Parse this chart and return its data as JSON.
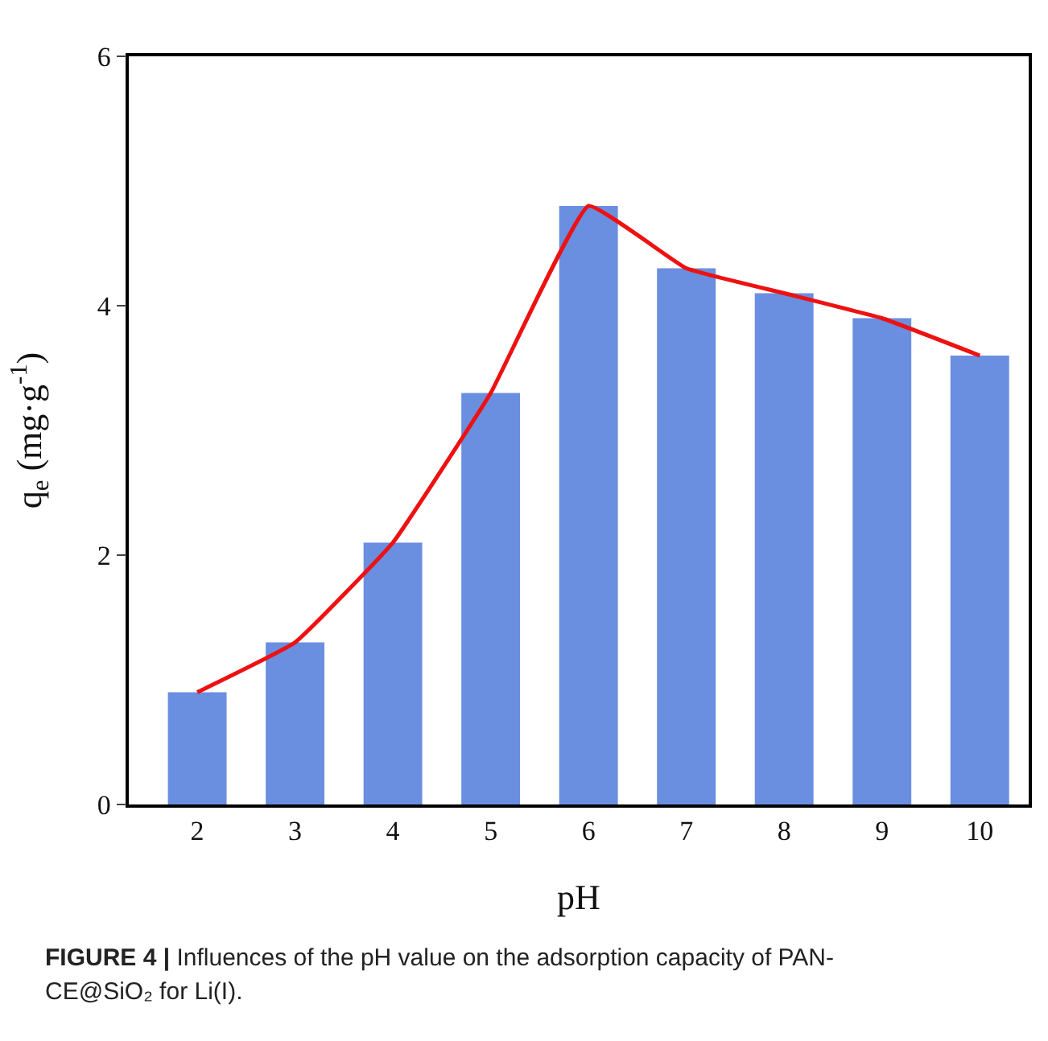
{
  "chart_data": {
    "type": "bar",
    "xlabel": "pH",
    "ylabel": "q$_{e}$ (mg·g$^{-1}$)",
    "categories": [
      "2",
      "3",
      "4",
      "5",
      "6",
      "7",
      "8",
      "9",
      "10"
    ],
    "series": [
      {
        "color": "#6a8ee0",
        "values": [
          0.9,
          1.3,
          2.1,
          3.3,
          4.8,
          4.3,
          4.1,
          3.9,
          3.6
        ]
      },
      {
        "type": "line",
        "color": "#ee1111",
        "values": [
          0.9,
          1.3,
          2.1,
          3.3,
          4.8,
          4.3,
          4.1,
          3.9,
          3.6
        ]
      }
    ],
    "ylim": [
      0,
      6
    ],
    "yticks": [
      0,
      2,
      4,
      6
    ],
    "grid": false,
    "marker": "none",
    "line_style": "solid",
    "annotations": [
      "FIGURE 4 | Influences of the pH value on the adsorption capacity of PAN-CE@SiO₂ for Li(I)."
    ]
  }
}
